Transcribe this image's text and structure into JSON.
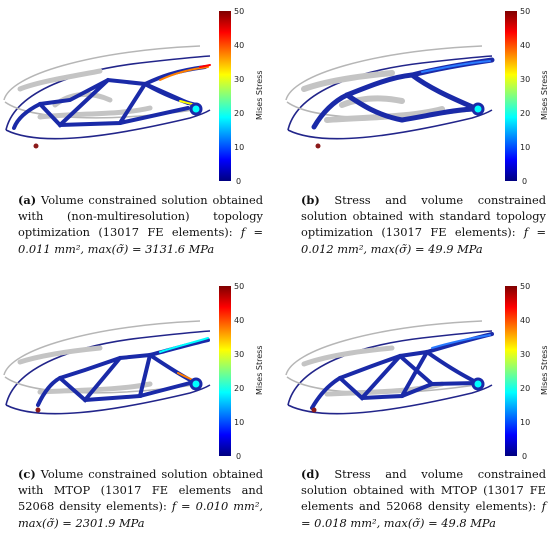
{
  "colorbar": {
    "title": "Mises Stress",
    "ticks": [
      "50",
      "40",
      "30",
      "20",
      "10",
      "0"
    ],
    "range": [
      0,
      50
    ],
    "colors": [
      "#00007f",
      "#0000ff",
      "#0080ff",
      "#00ffff",
      "#80ff80",
      "#ffff00",
      "#ff8000",
      "#ff0000",
      "#7f0000"
    ]
  },
  "panels": [
    {
      "tag": "(a)",
      "caption_text": "Volume constrained solution obtained with (non-multiresolution) topology optimization (13017 FE elements):",
      "formula": "f = 0.011 mm², max(σ̃) = 3131.6 MPa"
    },
    {
      "tag": "(b)",
      "caption_text": "Stress and volume constrained solution obtained with standard topology optimization (13017 FE elements):",
      "formula": "f = 0.012 mm², max(σ̃) = 49.9 MPa"
    },
    {
      "tag": "(c)",
      "caption_text": "Volume constrained solution obtained with MTOP (13017 FE elements and 52068 density elements):",
      "formula": "f = 0.010 mm², max(σ̃) = 2301.9 MPa"
    },
    {
      "tag": "(d)",
      "caption_text": "Stress and volume constrained solution obtained with MTOP (13017 FE elements and 52068 density elements):",
      "formula": "f = 0.018 mm², max(σ̃) = 49.8 MPa"
    }
  ]
}
